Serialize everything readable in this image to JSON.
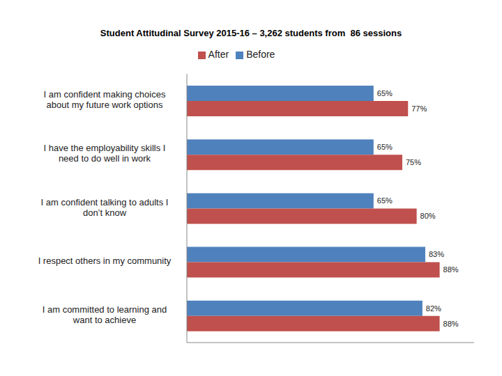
{
  "chart_data": {
    "type": "bar",
    "title": "Student Attitudinal Survey 2015-16 – 3,262 students from  86 sessions",
    "orientation": "horizontal",
    "categories": [
      "I am confident making choices about my future work options",
      "I have the employability skills I need to do well in work",
      "I am confident talking to adults I don’t know",
      "I respect others in my community",
      "I am committed to learning and want to achieve"
    ],
    "series": [
      {
        "name": "Before",
        "color": "#4f81bd",
        "values": [
          65,
          65,
          65,
          83,
          82
        ],
        "value_labels": [
          "65%",
          "65%",
          "65%",
          "83%",
          "82%"
        ]
      },
      {
        "name": "After",
        "color": "#c0504d",
        "values": [
          77,
          75,
          80,
          88,
          88
        ],
        "value_labels": [
          "77%",
          "75%",
          "80%",
          "88%",
          "88%"
        ]
      }
    ],
    "xlim": [
      0,
      100
    ],
    "legend": "top",
    "data_labels": true,
    "tick_labels": "y",
    "grid": false
  }
}
